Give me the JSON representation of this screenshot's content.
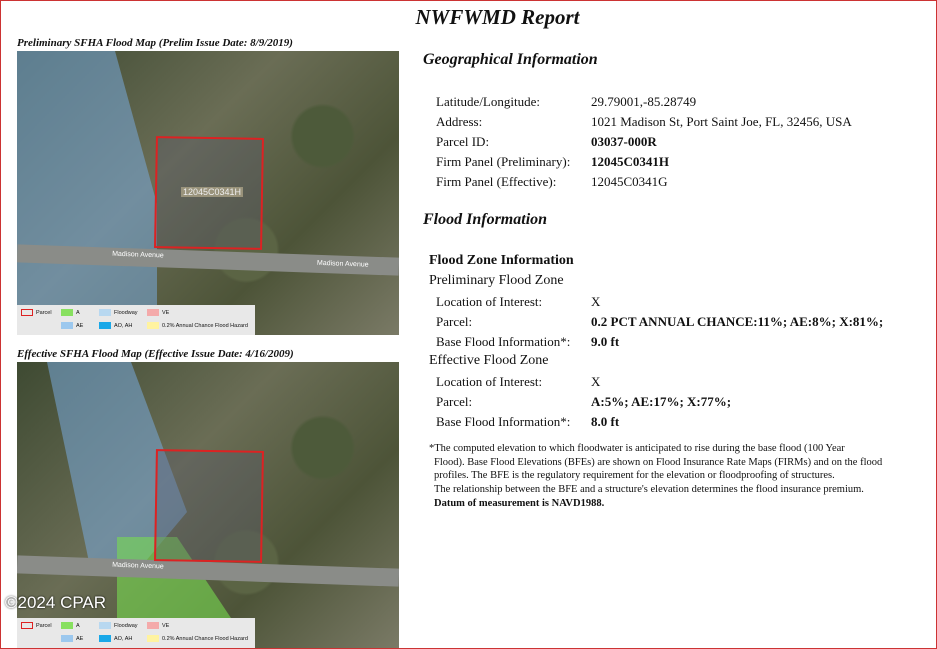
{
  "report_title": "NWFWMD Report",
  "maps": [
    {
      "caption": "Preliminary SFHA Flood Map (Prelim Issue Date: 8/9/2019)",
      "panel_label": "12045C0341H",
      "road_label": "Madison Avenue"
    },
    {
      "caption": "Effective SFHA Flood Map (Effective Issue Date: 4/16/2009)",
      "panel_label": "",
      "road_label": "Madison Avenue"
    }
  ],
  "legend": {
    "parcel": "Parcel",
    "a": "A",
    "floodway": "Floodway",
    "ve": "VE",
    "ae": "AE",
    "ao_ah": "AO, AH",
    "x500": "0.2% Annual Chance Flood Hazard"
  },
  "colors": {
    "parcel": "#d22222",
    "a": "#88e060",
    "floodway": "#b8d8f0",
    "ve": "#f4aaaa",
    "ae": "#9cc8ee",
    "ao_ah": "#1aa8e8",
    "x500": "#fff3a0"
  },
  "geo": {
    "heading": "Geographical Information",
    "rows": [
      {
        "label": "Latitude/Longitude:",
        "value": "29.79001,-85.28749"
      },
      {
        "label": "Address:",
        "value": "1021 Madison St, Port Saint Joe, FL, 32456, USA"
      },
      {
        "label": "Parcel ID:",
        "value": "03037-000R"
      },
      {
        "label": "Firm Panel (Preliminary):",
        "value": "12045C0341H"
      },
      {
        "label": "Firm Panel (Effective):",
        "value": "12045C0341G"
      }
    ]
  },
  "flood": {
    "heading": "Flood Information",
    "subheading": "Flood Zone Information",
    "preliminary": {
      "title": "Preliminary Flood Zone",
      "rows": [
        {
          "label": "Location of Interest:",
          "value": "X"
        },
        {
          "label": "Parcel:",
          "value": "0.2 PCT ANNUAL CHANCE:11%; AE:8%; X:81%;"
        },
        {
          "label": "Base Flood Information*:",
          "value": "9.0 ft"
        }
      ]
    },
    "effective": {
      "title": "Effective Flood Zone",
      "rows": [
        {
          "label": "Location of Interest:",
          "value": "X"
        },
        {
          "label": "Parcel:",
          "value": "A:5%; AE:17%; X:77%;"
        },
        {
          "label": "Base Flood Information*:",
          "value": "8.0 ft"
        }
      ]
    }
  },
  "note": {
    "lines": [
      "*The computed elevation to which floodwater is anticipated to rise during the base flood (100 Year",
      "Flood). Base Flood Elevations (BFEs) are shown on Flood Insurance Rate Maps (FIRMs) and on the flood",
      "profiles. The BFE is the regulatory requirement for the elevation or floodproofing of structures.",
      "The relationship between the BFE and a structure's elevation determines the flood insurance premium."
    ],
    "datum": "Datum of measurement is NAVD1988."
  },
  "watermark": "©2024 CPAR"
}
